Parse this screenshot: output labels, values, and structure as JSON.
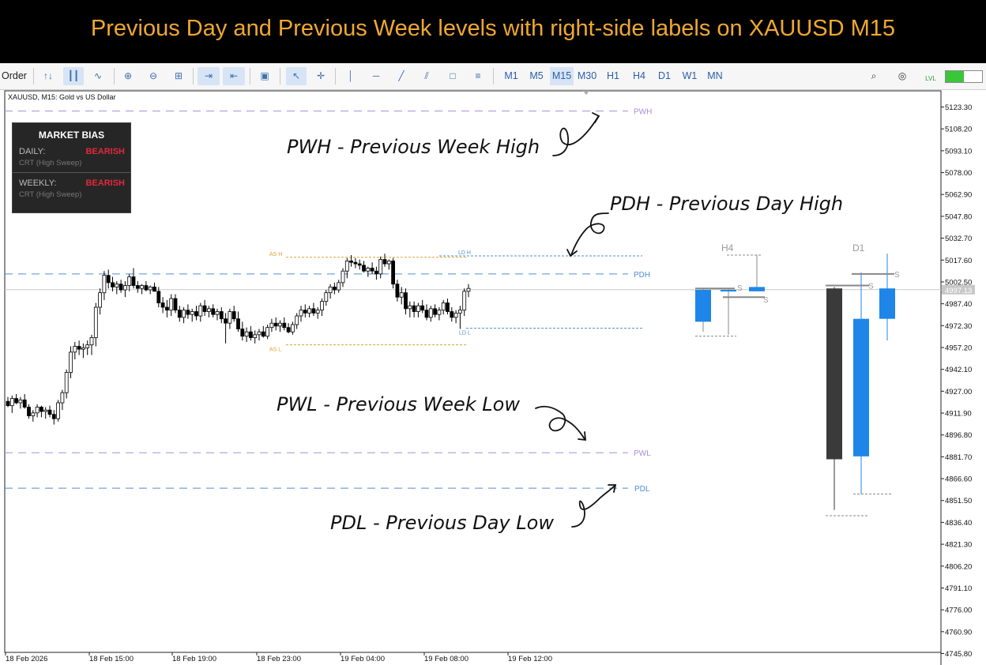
{
  "banner": {
    "title": "Previous Day and Previous Week levels with right-side labels on XAUUSD M15"
  },
  "toolbar": {
    "order_label": "Order",
    "timeframes": [
      "M1",
      "M5",
      "M15",
      "M30",
      "H1",
      "H4",
      "D1",
      "W1",
      "MN"
    ],
    "selected_timeframe": "M15",
    "icons": [
      "line-chart-icon",
      "bar-chart-icon",
      "candlestick-icon",
      "zoom-in-icon",
      "zoom-out-icon",
      "grid-icon",
      "autoscroll-icon",
      "chart-shift-icon",
      "screenshot-icon",
      "cursor-icon",
      "crosshair-icon",
      "vertical-line-icon",
      "horizontal-line-icon",
      "trendline-icon",
      "channel-icon",
      "rectangle-icon",
      "fibonacci-icon",
      "search-icon",
      "account-icon",
      "signal-icon"
    ],
    "signal_label": "LVL",
    "accent": "#3a6fb0"
  },
  "chart": {
    "symbol_info": "XAUUSD, M15:  Gold vs US Dollar"
  },
  "market_bias": {
    "title": "MARKET BIAS",
    "daily_label": "DAILY:",
    "daily_value": "BEARISH",
    "daily_sub": "CRT (High Sweep)",
    "weekly_label": "WEEKLY:",
    "weekly_value": "BEARISH",
    "weekly_sub": "CRT (High Sweep)",
    "bearish_color": "#e0283c"
  },
  "annotations": {
    "pwh": "PWH - Previous Week High",
    "pdh": "PDH - Previous Day High",
    "pwl": "PWL - Previous Week Low",
    "pdl": "PDL - Previous Day Low"
  },
  "chart_data": {
    "type": "candlestick",
    "title": "XAUUSD, M15:  Gold vs US Dollar",
    "ylim": [
      4737,
      5130
    ],
    "y_ticks": [
      5123.3,
      5108.2,
      5093.1,
      5078.0,
      5062.9,
      5047.8,
      5032.7,
      5017.6,
      5002.5,
      4987.4,
      4972.3,
      4957.2,
      4942.1,
      4927.0,
      4911.9,
      4896.8,
      4881.7,
      4866.6,
      4851.5,
      4836.4,
      4821.3,
      4806.2,
      4791.1,
      4776.0,
      4760.9,
      4745.8
    ],
    "x_ticks": [
      "18 Feb 2026",
      "18 Feb 15:00",
      "18 Feb 19:00",
      "18 Feb 23:00",
      "19 Feb 04:00",
      "19 Feb 08:00",
      "19 Feb 12:00"
    ],
    "current_price": "4997.13",
    "levels": [
      {
        "name": "PWH",
        "price": 5120.5,
        "color": "#a58fd6"
      },
      {
        "name": "PDH",
        "price": 5008.0,
        "color": "#4f8fd0"
      },
      {
        "name": "PWL",
        "price": 4884.5,
        "color": "#a58fd6"
      },
      {
        "name": "PDL",
        "price": 4860.0,
        "color": "#4f8fd0"
      },
      {
        "name": "AS H",
        "price": 5019.5,
        "color": "#e0a030"
      },
      {
        "name": "AS L",
        "price": 4959.0,
        "color": "#e0a030"
      },
      {
        "name": "LD H",
        "price": 5020.5,
        "color": "#4f8fd0"
      },
      {
        "name": "LD L",
        "price": 4970.5,
        "color": "#4f8fd0"
      }
    ],
    "candles": [
      [
        4920,
        4923,
        4916,
        4917
      ],
      [
        4917,
        4924,
        4912,
        4922
      ],
      [
        4922,
        4925,
        4918,
        4919
      ],
      [
        4919,
        4923,
        4915,
        4921
      ],
      [
        4921,
        4925,
        4915,
        4916
      ],
      [
        4916,
        4918,
        4908,
        4910
      ],
      [
        4910,
        4914,
        4906,
        4912
      ],
      [
        4912,
        4918,
        4909,
        4916
      ],
      [
        4916,
        4917,
        4909,
        4913
      ],
      [
        4913,
        4916,
        4908,
        4914
      ],
      [
        4914,
        4917,
        4909,
        4911
      ],
      [
        4911,
        4914,
        4904,
        4908
      ],
      [
        4908,
        4921,
        4906,
        4919
      ],
      [
        4919,
        4928,
        4914,
        4926
      ],
      [
        4926,
        4942,
        4922,
        4940
      ],
      [
        4940,
        4958,
        4936,
        4954
      ],
      [
        4954,
        4961,
        4949,
        4958
      ],
      [
        4958,
        4962,
        4952,
        4956
      ],
      [
        4956,
        4960,
        4950,
        4957
      ],
      [
        4957,
        4962,
        4952,
        4959
      ],
      [
        4959,
        4966,
        4952,
        4964
      ],
      [
        4964,
        4988,
        4958,
        4985
      ],
      [
        4985,
        4998,
        4980,
        4995
      ],
      [
        4995,
        5010,
        4990,
        5007
      ],
      [
        5007,
        5011,
        4998,
        5002
      ],
      [
        5002,
        5006,
        4996,
        4999
      ],
      [
        4999,
        5003,
        4994,
        5001
      ],
      [
        5001,
        5004,
        4995,
        4997
      ],
      [
        4997,
        5003,
        4992,
        5000
      ],
      [
        5000,
        5008,
        4996,
        5006
      ],
      [
        5006,
        5012,
        4998,
        5000
      ],
      [
        5000,
        5003,
        4995,
        4998
      ],
      [
        4998,
        5001,
        4994,
        5000
      ],
      [
        5000,
        5003,
        4996,
        4997
      ],
      [
        4997,
        5000,
        4994,
        4999
      ],
      [
        4999,
        5002,
        4996,
        4996
      ],
      [
        4996,
        4999,
        4985,
        4988
      ],
      [
        4988,
        4992,
        4981,
        4985
      ],
      [
        4985,
        4990,
        4978,
        4983
      ],
      [
        4983,
        4994,
        4979,
        4991
      ],
      [
        4991,
        4994,
        4981,
        4983
      ],
      [
        4983,
        4986,
        4975,
        4978
      ],
      [
        4978,
        4985,
        4974,
        4983
      ],
      [
        4983,
        4987,
        4977,
        4980
      ],
      [
        4980,
        4984,
        4975,
        4982
      ],
      [
        4982,
        4986,
        4976,
        4979
      ],
      [
        4979,
        4988,
        4975,
        4986
      ],
      [
        4986,
        4990,
        4979,
        4982
      ],
      [
        4982,
        4986,
        4978,
        4984
      ],
      [
        4984,
        4987,
        4978,
        4980
      ],
      [
        4980,
        4984,
        4976,
        4982
      ],
      [
        4982,
        4985,
        4974,
        4977
      ],
      [
        4977,
        4981,
        4960,
        4974
      ],
      [
        4974,
        4984,
        4970,
        4982
      ],
      [
        4982,
        4986,
        4975,
        4977
      ],
      [
        4977,
        4982,
        4968,
        4970
      ],
      [
        4970,
        4975,
        4962,
        4965
      ],
      [
        4965,
        4971,
        4961,
        4968
      ],
      [
        4968,
        4972,
        4962,
        4964
      ],
      [
        4964,
        4969,
        4960,
        4966
      ],
      [
        4966,
        4970,
        4962,
        4968
      ],
      [
        4968,
        4972,
        4964,
        4965
      ],
      [
        4965,
        4973,
        4963,
        4971
      ],
      [
        4971,
        4977,
        4968,
        4974
      ],
      [
        4974,
        4978,
        4969,
        4972
      ],
      [
        4972,
        4976,
        4968,
        4974
      ],
      [
        4974,
        4978,
        4969,
        4971
      ],
      [
        4971,
        4974,
        4967,
        4968
      ],
      [
        4968,
        4975,
        4966,
        4973
      ],
      [
        4973,
        4981,
        4970,
        4979
      ],
      [
        4979,
        4986,
        4975,
        4983
      ],
      [
        4983,
        4987,
        4978,
        4981
      ],
      [
        4981,
        4986,
        4978,
        4984
      ],
      [
        4984,
        4988,
        4979,
        4981
      ],
      [
        4981,
        4985,
        4977,
        4983
      ],
      [
        4983,
        4991,
        4979,
        4989
      ],
      [
        4989,
        4997,
        4986,
        4995
      ],
      [
        4995,
        5001,
        4991,
        4999
      ],
      [
        4999,
        5002,
        4994,
        4997
      ],
      [
        4997,
        5004,
        4995,
        5002
      ],
      [
        5002,
        5012,
        4999,
        5010
      ],
      [
        5010,
        5019,
        5005,
        5017
      ],
      [
        5017,
        5021,
        5013,
        5016
      ],
      [
        5016,
        5019,
        5012,
        5015
      ],
      [
        5015,
        5018,
        5011,
        5014
      ],
      [
        5014,
        5017,
        5009,
        5010
      ],
      [
        5010,
        5013,
        5006,
        5012
      ],
      [
        5012,
        5016,
        5008,
        5010
      ],
      [
        5010,
        5013,
        5004,
        5008
      ],
      [
        5008,
        5020,
        5005,
        5018
      ],
      [
        5018,
        5022,
        5013,
        5015
      ],
      [
        5015,
        5018,
        5011,
        5017
      ],
      [
        5017,
        5019,
        4998,
        5001
      ],
      [
        5001,
        5004,
        4989,
        4992
      ],
      [
        4992,
        4999,
        4987,
        4995
      ],
      [
        4995,
        4998,
        4980,
        4984
      ],
      [
        4984,
        4989,
        4978,
        4986
      ],
      [
        4986,
        4989,
        4978,
        4982
      ],
      [
        4982,
        4988,
        4978,
        4986
      ],
      [
        4986,
        4990,
        4981,
        4983
      ],
      [
        4983,
        4987,
        4976,
        4978
      ],
      [
        4978,
        4986,
        4975,
        4984
      ],
      [
        4984,
        4987,
        4978,
        4980
      ],
      [
        4980,
        4985,
        4976,
        4983
      ],
      [
        4983,
        4990,
        4980,
        4988
      ],
      [
        4988,
        4991,
        4980,
        4982
      ],
      [
        4982,
        4985,
        4975,
        4978
      ],
      [
        4978,
        4983,
        4974,
        4981
      ],
      [
        4981,
        4986,
        4970,
        4983
      ],
      [
        4983,
        4998,
        4979,
        4996
      ],
      [
        4996,
        5001,
        4992,
        4998
      ]
    ],
    "htf": [
      {
        "label": "H4",
        "color": "#1e86e8",
        "candles": [
          [
            4997,
            4998,
            4968,
            4975
          ],
          [
            4997,
            4998,
            4966,
            4997
          ],
          [
            4999,
            5021,
            4996,
            4996
          ],
          [
            4995,
            4999,
            4970,
            4998
          ]
        ]
      },
      {
        "label": "D1",
        "candles": [
          [
            4998,
            4999,
            4845,
            4880,
            "#3a3a3a"
          ],
          [
            4977,
            5009,
            4856,
            4882,
            "#1e86e8"
          ],
          [
            4977,
            5022,
            4962,
            4998,
            "#1e86e8"
          ]
        ]
      }
    ]
  }
}
